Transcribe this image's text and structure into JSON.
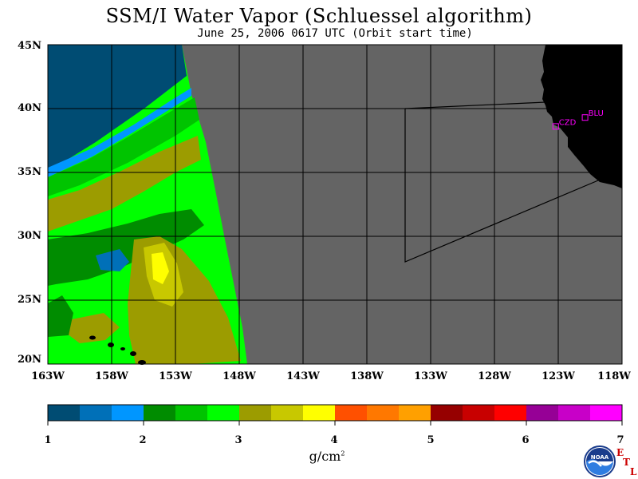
{
  "header": {
    "title": "SSM/I Water Vapor (Schluessel algorithm)",
    "subtitle": "June 25, 2006  0617 UTC  (Orbit start time)"
  },
  "map": {
    "lat_labels": [
      "45N",
      "40N",
      "35N",
      "30N",
      "25N",
      "20N"
    ],
    "lon_labels": [
      "163W",
      "158W",
      "153W",
      "148W",
      "143W",
      "138W",
      "133W",
      "128W",
      "123W",
      "118W"
    ],
    "lat_range": [
      20,
      45
    ],
    "lon_range": [
      -163,
      -118
    ],
    "stations": [
      {
        "label": "CZD",
        "lat": 38.6,
        "lon": -123.2
      },
      {
        "label": "BLU",
        "lat": 39.3,
        "lon": -120.9
      }
    ],
    "colors": {
      "no_data": "#646464",
      "land": "#000000",
      "grid": "#000000",
      "station": "#ff00ff"
    }
  },
  "colorbar": {
    "ticks": [
      "1",
      "2",
      "3",
      "4",
      "5",
      "6",
      "7"
    ],
    "units_base": "g/cm",
    "units_exp": "2",
    "colors": [
      "#004c73",
      "#0070b8",
      "#0096ff",
      "#008c00",
      "#00c400",
      "#00ff00",
      "#9c9c00",
      "#c8c800",
      "#ffff00",
      "#ff5000",
      "#ff7800",
      "#ffa000",
      "#960000",
      "#c80000",
      "#ff0000",
      "#960096",
      "#c800c8",
      "#ff00ff"
    ]
  },
  "logo": {
    "agency": "NOAA",
    "lab_letters": [
      "E",
      "T",
      "L"
    ]
  }
}
